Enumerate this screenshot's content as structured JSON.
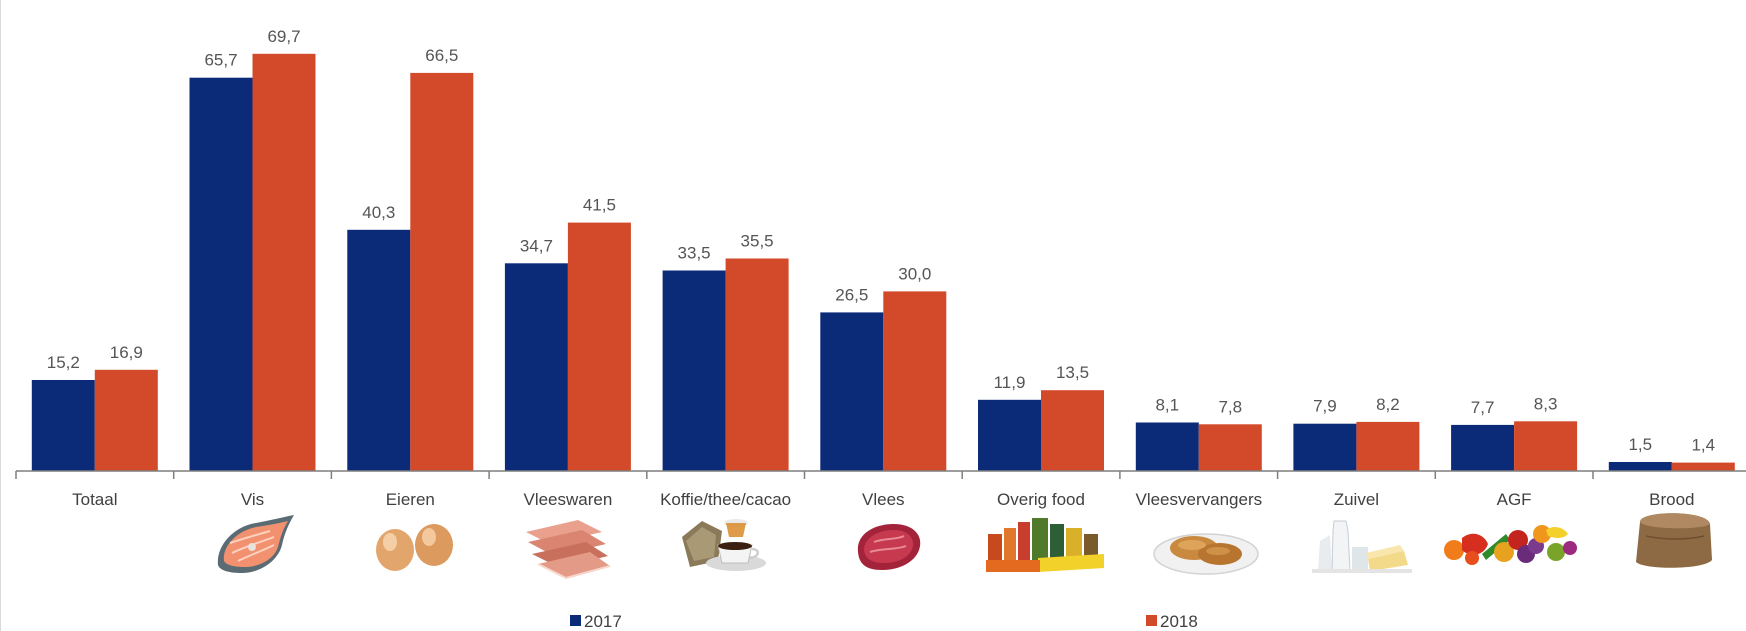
{
  "chart_data": {
    "type": "bar",
    "categories": [
      "Totaal",
      "Vis",
      "Eieren",
      "Vleeswaren",
      "Koffie/thee/cacao",
      "Vlees",
      "Overig food",
      "Vleesvervangers",
      "Zuivel",
      "AGF",
      "Brood"
    ],
    "series": [
      {
        "name": "2017",
        "color": "#0b2a78",
        "values": [
          15.2,
          65.7,
          40.3,
          34.7,
          33.5,
          26.5,
          11.9,
          8.1,
          7.9,
          7.7,
          1.5
        ],
        "labels": [
          "15,2",
          "65,7",
          "40,3",
          "34,7",
          "33,5",
          "26,5",
          "11,9",
          "8,1",
          "7,9",
          "7,7",
          "1,5"
        ]
      },
      {
        "name": "2018",
        "color": "#d24a2a",
        "values": [
          16.9,
          69.7,
          66.5,
          41.5,
          35.5,
          30.0,
          13.5,
          7.8,
          8.2,
          8.3,
          1.4
        ],
        "labels": [
          "16,9",
          "69,7",
          "66,5",
          "41,5",
          "35,5",
          "30,0",
          "13,5",
          "7,8",
          "8,2",
          "8,3",
          "1,4"
        ]
      }
    ],
    "category_icons": [
      "",
      "salmon-steak-icon",
      "eggs-icon",
      "sliced-ham-icon",
      "coffee-tea-icon",
      "raw-steak-icon",
      "grocery-products-icon",
      "meat-substitute-icon",
      "dairy-icon",
      "fruit-vegetables-icon",
      "bread-icon"
    ],
    "ylim": [
      0,
      72
    ],
    "grid": false,
    "legend_position": "bottom"
  }
}
